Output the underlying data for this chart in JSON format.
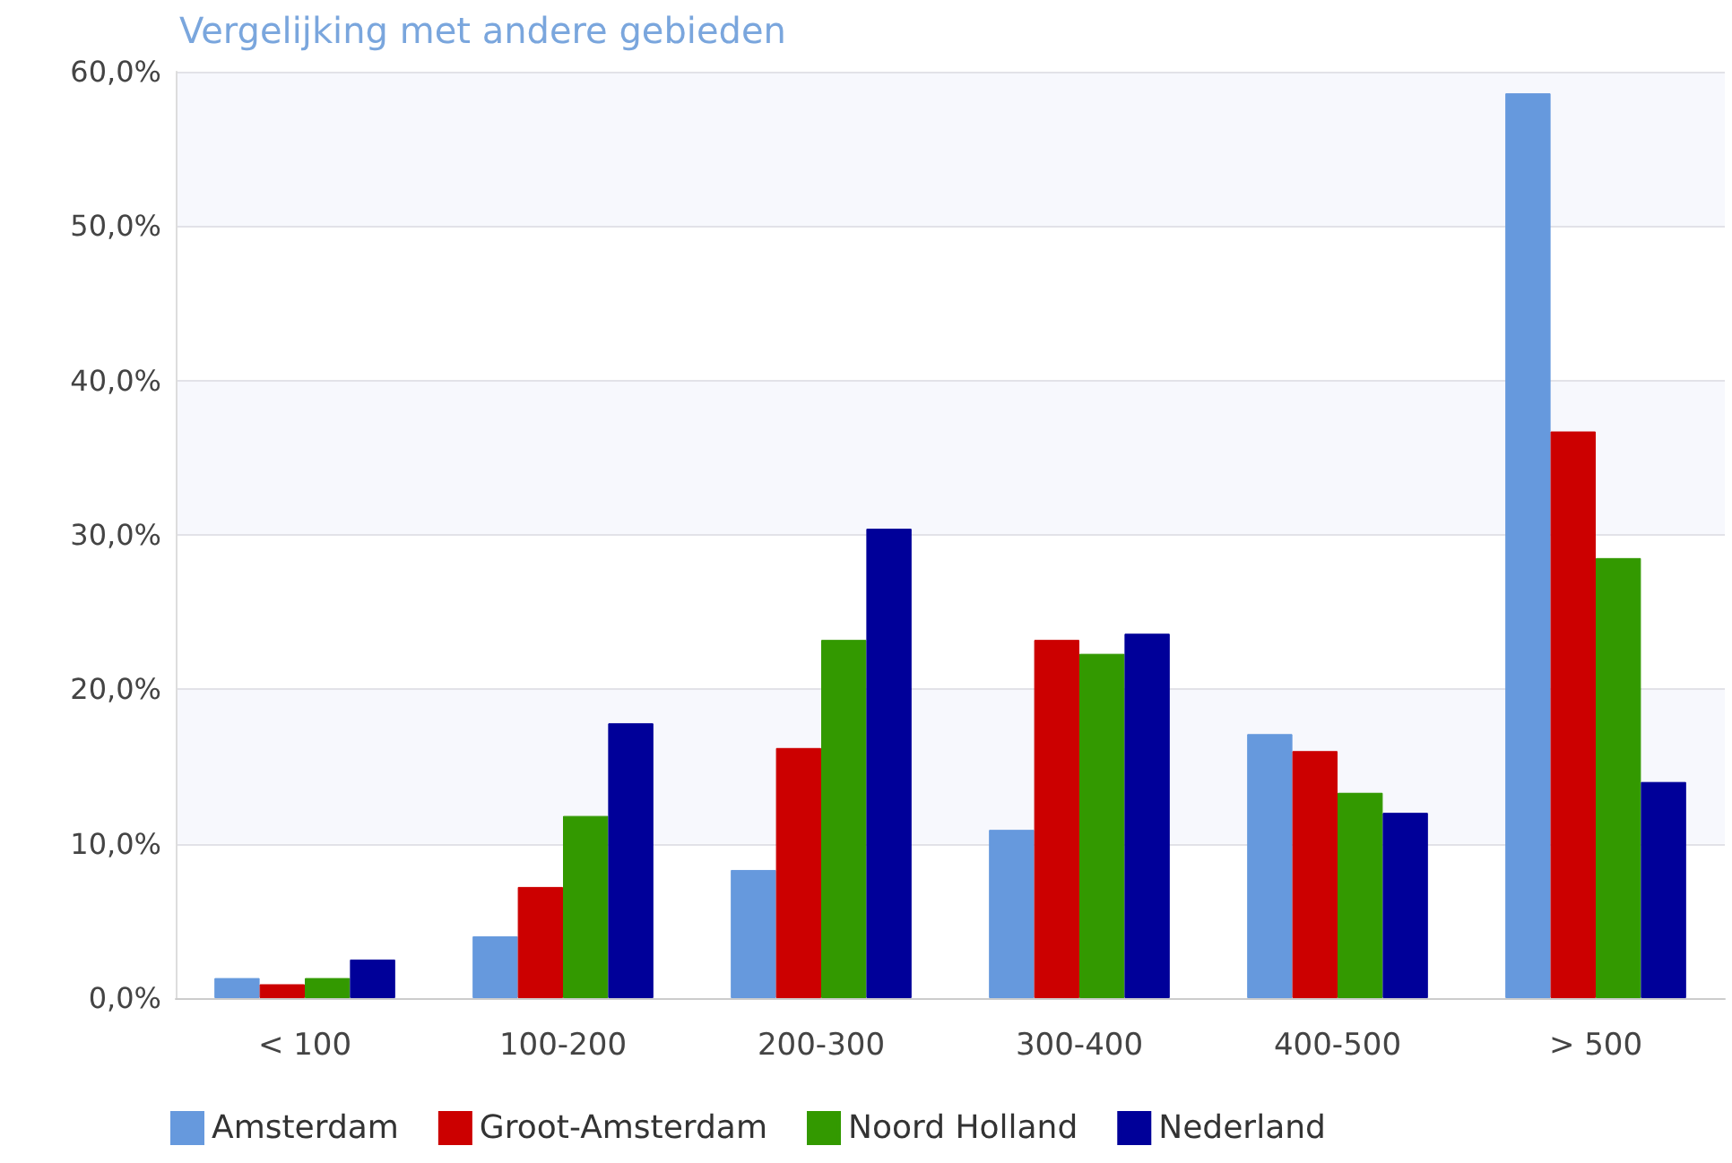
{
  "chart_data": {
    "type": "bar",
    "title": "Vergelijking met andere gebieden",
    "categories": [
      "< 100",
      "100-200",
      "200-300",
      "300-400",
      "400-500",
      "> 500"
    ],
    "series": [
      {
        "name": "Amsterdam",
        "color": "#6699dd",
        "values": [
          1.3,
          4.0,
          8.3,
          10.9,
          17.1,
          58.6
        ]
      },
      {
        "name": "Groot-Amsterdam",
        "color": "#cc0000",
        "values": [
          0.9,
          7.2,
          16.2,
          23.2,
          16.0,
          36.7
        ]
      },
      {
        "name": "Noord Holland",
        "color": "#339900",
        "values": [
          1.3,
          11.8,
          23.2,
          22.3,
          13.3,
          28.5
        ]
      },
      {
        "name": "Nederland",
        "color": "#000099",
        "values": [
          2.5,
          17.8,
          30.4,
          23.6,
          12.0,
          14.0
        ]
      }
    ],
    "ylim": [
      0,
      60
    ],
    "yticks": [
      {
        "value": 0,
        "label": "0,0%"
      },
      {
        "value": 10,
        "label": "10,0%"
      },
      {
        "value": 20,
        "label": "20,0%"
      },
      {
        "value": 30,
        "label": "30,0%"
      },
      {
        "value": 40,
        "label": "40,0%"
      },
      {
        "value": 50,
        "label": "50,0%"
      },
      {
        "value": 60,
        "label": "60,0%"
      }
    ],
    "grid": "y",
    "legend": "bottom"
  }
}
